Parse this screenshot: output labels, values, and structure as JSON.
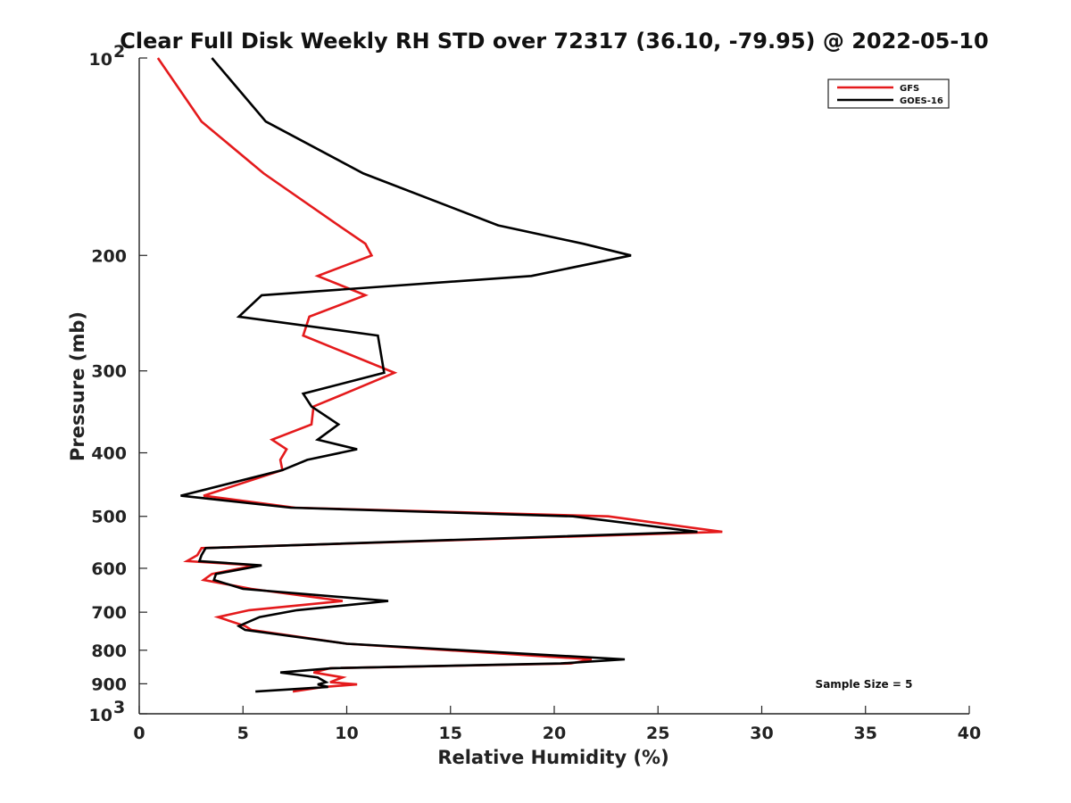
{
  "chart_data": {
    "type": "line",
    "title": "Clear Full Disk Weekly RH STD over 72317 (36.10, -79.95) @ 2022-05-10",
    "xlabel": "Relative Humidity (%)",
    "ylabel": "Pressure (mb)",
    "xlim": [
      0,
      40
    ],
    "ylim": [
      100,
      1000
    ],
    "y_scale": "log",
    "y_reversed": true,
    "x_ticks": [
      0,
      5,
      10,
      15,
      20,
      25,
      30,
      35,
      40
    ],
    "x_tick_labels": [
      "0",
      "5",
      "10",
      "15",
      "20",
      "25",
      "30",
      "35",
      "40"
    ],
    "y_ticks": [
      {
        "value": 100,
        "label": "10",
        "sup": "2"
      },
      {
        "value": 200,
        "label": "200",
        "sup": ""
      },
      {
        "value": 300,
        "label": "300",
        "sup": ""
      },
      {
        "value": 400,
        "label": "400",
        "sup": ""
      },
      {
        "value": 500,
        "label": "500",
        "sup": ""
      },
      {
        "value": 600,
        "label": "600",
        "sup": ""
      },
      {
        "value": 700,
        "label": "700",
        "sup": ""
      },
      {
        "value": 800,
        "label": "800",
        "sup": ""
      },
      {
        "value": 900,
        "label": "900",
        "sup": ""
      },
      {
        "value": 1000,
        "label": "10",
        "sup": "3"
      }
    ],
    "grid": false,
    "legend_position": "top-right",
    "annotation": "Sample Size = 5",
    "series": [
      {
        "name": "GFS",
        "color": "#e41a1c",
        "points": [
          [
            0.9,
            100
          ],
          [
            3.0,
            125
          ],
          [
            6.0,
            150
          ],
          [
            9.6,
            180
          ],
          [
            10.9,
            192
          ],
          [
            11.2,
            200
          ],
          [
            8.6,
            215
          ],
          [
            10.9,
            230
          ],
          [
            8.2,
            248
          ],
          [
            7.9,
            265
          ],
          [
            12.3,
            302
          ],
          [
            9.9,
            325
          ],
          [
            8.4,
            340
          ],
          [
            8.3,
            362
          ],
          [
            6.4,
            382
          ],
          [
            7.1,
            395
          ],
          [
            6.8,
            410
          ],
          [
            6.9,
            425
          ],
          [
            3.1,
            465
          ],
          [
            7.5,
            485
          ],
          [
            22.6,
            500
          ],
          [
            28.1,
            528
          ],
          [
            3.0,
            559
          ],
          [
            2.8,
            573
          ],
          [
            2.3,
            585
          ],
          [
            5.6,
            594
          ],
          [
            3.5,
            612
          ],
          [
            3.1,
            625
          ],
          [
            5.4,
            645
          ],
          [
            9.8,
            673
          ],
          [
            5.3,
            695
          ],
          [
            3.8,
            712
          ],
          [
            5.1,
            735
          ],
          [
            5.4,
            745
          ],
          [
            10.0,
            782
          ],
          [
            21.8,
            826
          ],
          [
            20.8,
            838
          ],
          [
            9.2,
            852
          ],
          [
            8.4,
            865
          ],
          [
            9.8,
            880
          ],
          [
            9.2,
            895
          ],
          [
            10.5,
            902
          ],
          [
            8.9,
            910
          ],
          [
            7.4,
            925
          ]
        ]
      },
      {
        "name": "GOES-16",
        "color": "#000000",
        "points": [
          [
            3.5,
            100
          ],
          [
            6.1,
            125
          ],
          [
            10.8,
            150
          ],
          [
            17.3,
            180
          ],
          [
            21.4,
            192
          ],
          [
            23.7,
            200
          ],
          [
            18.9,
            215
          ],
          [
            5.9,
            230
          ],
          [
            4.8,
            248
          ],
          [
            11.5,
            265
          ],
          [
            11.8,
            302
          ],
          [
            7.9,
            325
          ],
          [
            8.3,
            340
          ],
          [
            9.6,
            362
          ],
          [
            8.6,
            382
          ],
          [
            10.5,
            395
          ],
          [
            8.1,
            410
          ],
          [
            6.9,
            425
          ],
          [
            2.0,
            465
          ],
          [
            7.3,
            485
          ],
          [
            20.9,
            500
          ],
          [
            26.9,
            528
          ],
          [
            3.2,
            559
          ],
          [
            3.0,
            573
          ],
          [
            2.9,
            585
          ],
          [
            5.9,
            594
          ],
          [
            3.7,
            612
          ],
          [
            3.6,
            625
          ],
          [
            5.0,
            645
          ],
          [
            12.0,
            673
          ],
          [
            7.6,
            695
          ],
          [
            5.8,
            712
          ],
          [
            4.8,
            735
          ],
          [
            5.1,
            745
          ],
          [
            10.0,
            782
          ],
          [
            23.4,
            826
          ],
          [
            20.3,
            838
          ],
          [
            9.3,
            852
          ],
          [
            6.8,
            865
          ],
          [
            8.6,
            880
          ],
          [
            9.0,
            895
          ],
          [
            8.6,
            902
          ],
          [
            9.1,
            910
          ],
          [
            5.6,
            925
          ]
        ]
      }
    ]
  }
}
